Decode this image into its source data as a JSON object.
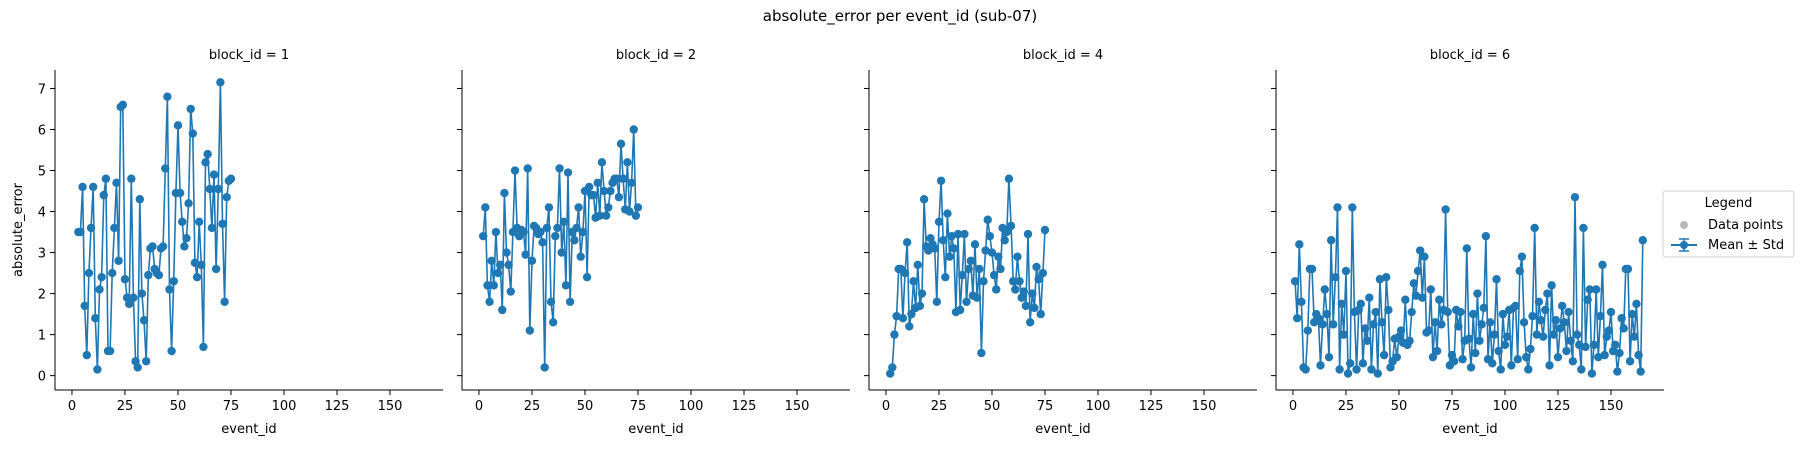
{
  "figure": {
    "title": "absolute_error per event_id (sub-07)"
  },
  "legend": {
    "title": "Legend",
    "items": [
      "Data points",
      "Mean ± Std"
    ]
  },
  "colors": {
    "line": "#1f77b4",
    "data_points": "#b9b9b9"
  },
  "chart_data": [
    {
      "type": "line",
      "title": "block_id = 1",
      "xlabel": "event_id",
      "ylabel": "absolute_error",
      "xlim": [
        -8,
        175
      ],
      "ylim": [
        -0.35,
        7.45
      ],
      "xticks": [
        0,
        25,
        50,
        75,
        100,
        125,
        150
      ],
      "yticks": [
        0,
        1,
        2,
        3,
        4,
        5,
        6,
        7
      ],
      "x": [
        3,
        4,
        5,
        6,
        7,
        8,
        9,
        10,
        11,
        12,
        13,
        14,
        15,
        16,
        17,
        18,
        19,
        20,
        21,
        22,
        23,
        24,
        25,
        26,
        27,
        28,
        29,
        30,
        31,
        32,
        33,
        34,
        35,
        36,
        37,
        38,
        39,
        40,
        41,
        42,
        43,
        44,
        45,
        46,
        47,
        48,
        49,
        50,
        51,
        52,
        53,
        54,
        55,
        56,
        57,
        58,
        59,
        60,
        61,
        62,
        63,
        64,
        65,
        66,
        67,
        68,
        69,
        70,
        71,
        72,
        73,
        74,
        75
      ],
      "y": [
        3.5,
        3.5,
        4.6,
        1.7,
        0.5,
        2.5,
        3.6,
        4.6,
        1.4,
        0.15,
        2.1,
        2.4,
        4.4,
        4.8,
        0.6,
        0.6,
        2.5,
        3.6,
        4.7,
        2.8,
        6.55,
        6.6,
        2.35,
        1.9,
        1.75,
        4.8,
        1.9,
        0.35,
        0.2,
        4.3,
        2.0,
        1.35,
        0.35,
        2.45,
        3.1,
        3.15,
        2.6,
        2.5,
        2.45,
        3.1,
        3.15,
        5.05,
        6.8,
        2.1,
        0.6,
        2.3,
        4.45,
        6.1,
        4.45,
        3.75,
        3.15,
        3.35,
        4.2,
        6.5,
        5.9,
        2.75,
        2.4,
        3.75,
        2.7,
        0.7,
        5.2,
        5.4,
        4.55,
        3.6,
        4.9,
        2.6,
        4.55,
        7.15,
        3.7,
        1.8,
        4.35,
        4.75,
        4.8
      ]
    },
    {
      "type": "line",
      "title": "block_id = 2",
      "xlabel": "event_id",
      "ylabel": "",
      "xlim": [
        -8,
        175
      ],
      "ylim": [
        -0.35,
        7.45
      ],
      "xticks": [
        0,
        25,
        50,
        75,
        100,
        125,
        150
      ],
      "yticks": [
        0,
        1,
        2,
        3,
        4,
        5,
        6,
        7
      ],
      "x": [
        2,
        3,
        4,
        5,
        6,
        7,
        8,
        9,
        10,
        11,
        12,
        13,
        14,
        15,
        16,
        17,
        18,
        19,
        20,
        21,
        22,
        23,
        24,
        25,
        26,
        27,
        28,
        29,
        30,
        31,
        32,
        33,
        34,
        35,
        36,
        37,
        38,
        39,
        40,
        41,
        42,
        43,
        44,
        45,
        46,
        47,
        48,
        49,
        50,
        51,
        52,
        53,
        54,
        55,
        56,
        57,
        58,
        59,
        60,
        61,
        62,
        63,
        64,
        65,
        66,
        67,
        68,
        69,
        70,
        71,
        72,
        73,
        74,
        75
      ],
      "y": [
        3.4,
        4.1,
        2.2,
        1.8,
        2.8,
        2.2,
        3.5,
        2.5,
        2.7,
        1.6,
        4.45,
        3.0,
        2.7,
        2.05,
        3.5,
        5.0,
        3.6,
        3.4,
        3.55,
        3.5,
        2.95,
        5.05,
        1.1,
        2.8,
        3.65,
        3.6,
        3.45,
        3.5,
        3.25,
        0.2,
        3.6,
        4.1,
        1.8,
        1.3,
        3.4,
        3.6,
        5.05,
        3.0,
        3.75,
        2.2,
        4.95,
        1.8,
        3.5,
        3.3,
        3.6,
        4.1,
        2.9,
        3.5,
        4.5,
        2.4,
        4.6,
        4.4,
        4.4,
        3.85,
        4.7,
        3.9,
        5.2,
        4.5,
        3.9,
        4.1,
        4.5,
        4.7,
        4.8,
        4.8,
        4.35,
        5.65,
        4.8,
        4.05,
        5.2,
        4.0,
        4.7,
        6.0,
        3.9,
        4.1
      ]
    },
    {
      "type": "line",
      "title": "block_id = 4",
      "xlabel": "event_id",
      "ylabel": "",
      "xlim": [
        -8,
        175
      ],
      "ylim": [
        -0.35,
        7.45
      ],
      "xticks": [
        0,
        25,
        50,
        75,
        100,
        125,
        150
      ],
      "yticks": [
        0,
        1,
        2,
        3,
        4,
        5,
        6,
        7
      ],
      "x": [
        2,
        3,
        4,
        5,
        6,
        7,
        8,
        9,
        10,
        11,
        12,
        13,
        14,
        15,
        16,
        17,
        18,
        19,
        20,
        21,
        22,
        23,
        24,
        25,
        26,
        27,
        28,
        29,
        30,
        31,
        32,
        33,
        34,
        35,
        36,
        37,
        38,
        39,
        40,
        41,
        42,
        43,
        44,
        45,
        46,
        47,
        48,
        49,
        50,
        51,
        52,
        53,
        54,
        55,
        56,
        57,
        58,
        59,
        60,
        61,
        62,
        63,
        64,
        65,
        66,
        67,
        68,
        69,
        70,
        71,
        72,
        73,
        74,
        75
      ],
      "y": [
        0.05,
        0.2,
        1.0,
        1.45,
        2.6,
        2.6,
        1.4,
        2.5,
        3.25,
        1.2,
        1.5,
        2.3,
        1.65,
        2.7,
        1.7,
        2.0,
        4.3,
        3.15,
        3.05,
        3.35,
        3.2,
        3.1,
        1.8,
        3.75,
        4.75,
        3.3,
        2.4,
        3.95,
        2.9,
        3.4,
        3.1,
        1.55,
        3.45,
        1.6,
        2.45,
        3.45,
        1.8,
        2.6,
        2.8,
        1.95,
        3.2,
        1.9,
        2.6,
        0.55,
        2.3,
        3.05,
        3.8,
        3.4,
        3.0,
        2.45,
        2.1,
        2.9,
        2.6,
        3.6,
        3.3,
        3.5,
        4.8,
        3.65,
        2.3,
        2.1,
        2.9,
        2.3,
        1.9,
        2.05,
        1.7,
        3.45,
        1.3,
        2.0,
        1.65,
        2.65,
        2.35,
        1.5,
        2.5,
        3.55
      ]
    },
    {
      "type": "line",
      "title": "block_id = 6",
      "xlabel": "event_id",
      "ylabel": "",
      "xlim": [
        -8,
        175
      ],
      "ylim": [
        -0.35,
        7.45
      ],
      "xticks": [
        0,
        25,
        50,
        75,
        100,
        125,
        150
      ],
      "yticks": [
        0,
        1,
        2,
        3,
        4,
        5,
        6,
        7
      ],
      "x": [
        1,
        2,
        3,
        4,
        5,
        6,
        7,
        8,
        9,
        10,
        11,
        12,
        13,
        14,
        15,
        16,
        17,
        18,
        19,
        20,
        21,
        22,
        23,
        24,
        25,
        26,
        27,
        28,
        29,
        30,
        31,
        32,
        33,
        34,
        35,
        36,
        37,
        38,
        39,
        40,
        41,
        42,
        43,
        44,
        45,
        46,
        47,
        48,
        49,
        50,
        51,
        52,
        53,
        54,
        55,
        56,
        57,
        58,
        59,
        60,
        61,
        62,
        63,
        64,
        65,
        66,
        67,
        68,
        69,
        70,
        71,
        72,
        73,
        74,
        75,
        76,
        77,
        78,
        79,
        80,
        81,
        82,
        83,
        84,
        85,
        86,
        87,
        88,
        89,
        90,
        91,
        92,
        93,
        94,
        95,
        96,
        97,
        98,
        99,
        100,
        101,
        102,
        103,
        104,
        105,
        106,
        107,
        108,
        109,
        110,
        111,
        112,
        113,
        114,
        115,
        116,
        117,
        118,
        119,
        120,
        121,
        122,
        123,
        124,
        125,
        126,
        127,
        128,
        129,
        130,
        131,
        132,
        133,
        134,
        135,
        136,
        137,
        138,
        139,
        140,
        141,
        142,
        143,
        144,
        145,
        146,
        147,
        148,
        149,
        150,
        151,
        152,
        153,
        154,
        155,
        156,
        157,
        158,
        159,
        160,
        161,
        162,
        163,
        164,
        165
      ],
      "y": [
        2.3,
        1.4,
        3.2,
        1.8,
        0.2,
        0.15,
        1.1,
        2.6,
        2.6,
        1.3,
        1.5,
        1.4,
        0.25,
        1.25,
        2.1,
        1.5,
        0.45,
        3.3,
        1.25,
        2.4,
        4.1,
        0.15,
        1.75,
        1.0,
        2.55,
        0.05,
        0.3,
        4.1,
        1.55,
        0.15,
        1.6,
        1.75,
        0.3,
        1.15,
        0.85,
        1.9,
        0.15,
        1.25,
        1.55,
        0.05,
        2.35,
        1.3,
        0.5,
        2.4,
        1.6,
        0.2,
        0.35,
        0.9,
        0.45,
        0.95,
        1.1,
        0.8,
        1.85,
        0.75,
        0.85,
        1.55,
        2.25,
        1.95,
        2.55,
        3.05,
        1.9,
        2.9,
        1.05,
        1.1,
        2.1,
        0.45,
        1.3,
        0.6,
        1.85,
        1.25,
        1.6,
        4.05,
        1.55,
        0.25,
        0.5,
        0.35,
        1.6,
        1.2,
        1.55,
        0.4,
        0.85,
        3.1,
        0.9,
        0.2,
        1.5,
        0.55,
        2.0,
        0.85,
        1.25,
        1.65,
        3.4,
        0.4,
        1.3,
        0.3,
        1.0,
        2.35,
        0.6,
        0.15,
        1.5,
        0.75,
        0.95,
        1.6,
        0.25,
        1.65,
        1.7,
        0.4,
        2.55,
        2.9,
        1.3,
        0.45,
        0.15,
        0.65,
        1.45,
        3.6,
        1.0,
        1.8,
        1.35,
        0.95,
        1.6,
        2.0,
        0.25,
        2.2,
        1.0,
        1.35,
        0.45,
        1.15,
        1.7,
        1.3,
        0.6,
        1.55,
        0.85,
        0.35,
        4.35,
        1.0,
        0.75,
        0.15,
        3.6,
        0.7,
        1.85,
        2.1,
        0.05,
        0.75,
        2.1,
        0.45,
        1.45,
        2.7,
        0.5,
        0.95,
        1.1,
        1.55,
        0.6,
        0.75,
        0.1,
        0.55,
        1.4,
        1.15,
        2.6,
        2.6,
        0.35,
        1.5,
        0.95,
        1.75,
        0.5,
        0.1,
        3.3
      ]
    }
  ]
}
